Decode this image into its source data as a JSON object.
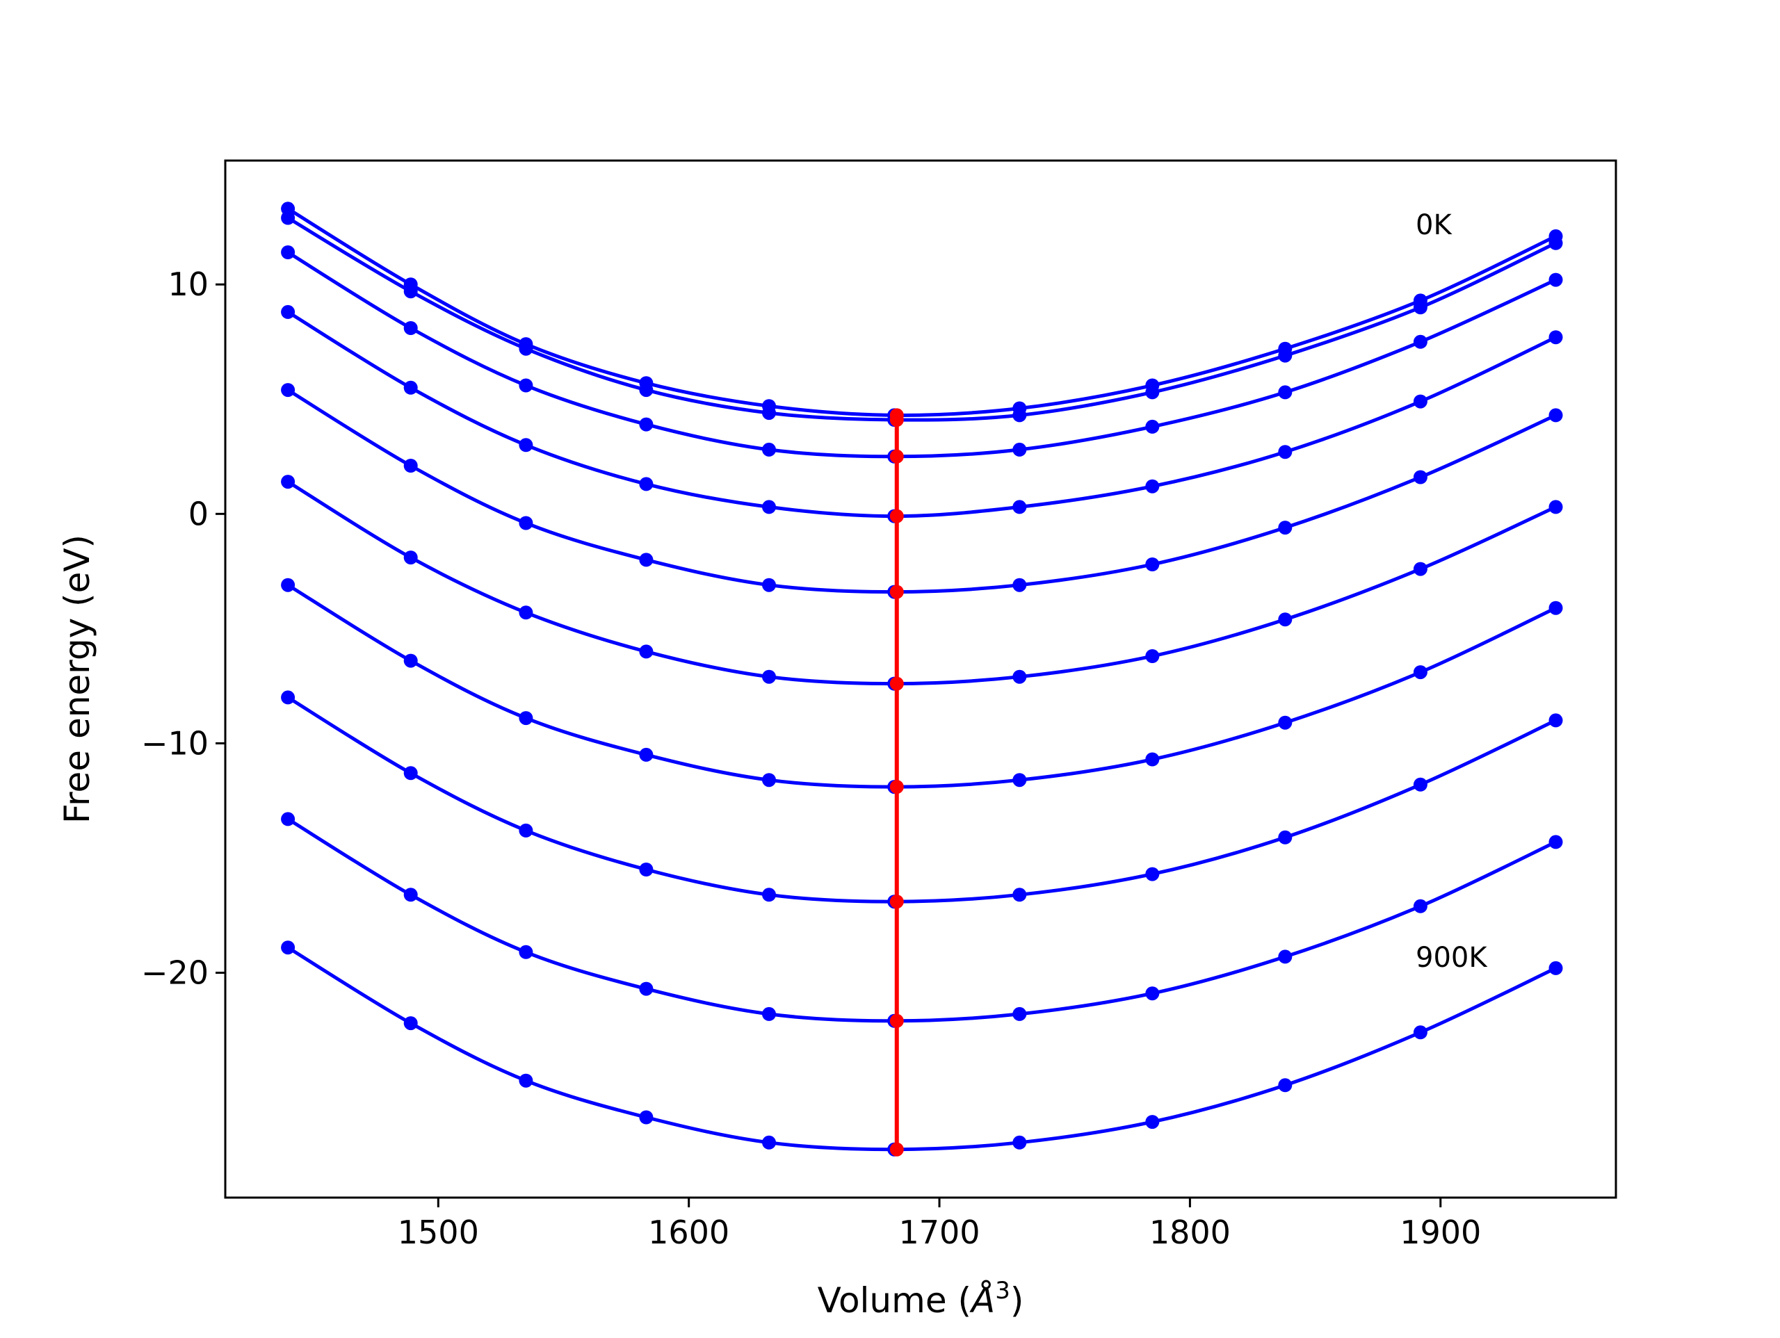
{
  "chart_data": {
    "type": "line",
    "title": "",
    "xlabel": "Volume ($\\AA^3$)",
    "xlabel_main": "Volume (",
    "xlabel_symbol": "Å",
    "xlabel_exp": "3",
    "xlabel_close": ")",
    "ylabel": "Free energy (eV)",
    "xlim": [
      1415,
      1970
    ],
    "ylim": [
      -29.8,
      15.4
    ],
    "x_ticks": [
      1500,
      1600,
      1700,
      1800,
      1900
    ],
    "x_tick_labels": [
      "1500",
      "1600",
      "1700",
      "1800",
      "1900"
    ],
    "y_ticks": [
      10,
      0,
      -10,
      -20
    ],
    "y_tick_labels": [
      "10",
      "0",
      "−10",
      "−20"
    ],
    "grid": false,
    "legend": "none",
    "x": [
      1440,
      1489,
      1535,
      1583,
      1632,
      1682,
      1732,
      1785,
      1838,
      1892,
      1946
    ],
    "equilibrium_volume": 1683,
    "series": [
      {
        "values": [
          13.3,
          10.0,
          7.4,
          5.7,
          4.7,
          4.3,
          4.6,
          5.6,
          7.2,
          9.3,
          12.1
        ]
      },
      {
        "values": [
          12.9,
          9.7,
          7.2,
          5.4,
          4.4,
          4.1,
          4.3,
          5.3,
          6.9,
          9.0,
          11.8
        ]
      },
      {
        "values": [
          11.4,
          8.1,
          5.6,
          3.9,
          2.8,
          2.5,
          2.8,
          3.8,
          5.3,
          7.5,
          10.2
        ]
      },
      {
        "values": [
          8.8,
          5.5,
          3.0,
          1.3,
          0.3,
          -0.1,
          0.3,
          1.2,
          2.7,
          4.9,
          7.7
        ]
      },
      {
        "values": [
          5.4,
          2.1,
          -0.4,
          -2.0,
          -3.1,
          -3.4,
          -3.1,
          -2.2,
          -0.6,
          1.6,
          4.3
        ]
      },
      {
        "values": [
          1.4,
          -1.9,
          -4.3,
          -6.0,
          -7.1,
          -7.4,
          -7.1,
          -6.2,
          -4.6,
          -2.4,
          0.3
        ]
      },
      {
        "values": [
          -3.1,
          -6.4,
          -8.9,
          -10.5,
          -11.6,
          -11.9,
          -11.6,
          -10.7,
          -9.1,
          -6.9,
          -4.1
        ]
      },
      {
        "values": [
          -8.0,
          -11.3,
          -13.8,
          -15.5,
          -16.6,
          -16.9,
          -16.6,
          -15.7,
          -14.1,
          -11.8,
          -9.0
        ]
      },
      {
        "values": [
          -13.3,
          -16.6,
          -19.1,
          -20.7,
          -21.8,
          -22.1,
          -21.8,
          -20.9,
          -19.3,
          -17.1,
          -14.3
        ]
      },
      {
        "values": [
          -18.9,
          -22.2,
          -24.7,
          -26.3,
          -27.4,
          -27.7,
          -27.4,
          -26.5,
          -24.9,
          -22.6,
          -19.8
        ]
      }
    ],
    "equilibrium_line": {
      "color": "#ff0000"
    },
    "series_color": "#0000ff",
    "annotations": [
      {
        "text": "0K",
        "x": 1890,
        "y": 12.3
      },
      {
        "text": "900K",
        "x": 1890,
        "y": -19.6
      }
    ]
  }
}
